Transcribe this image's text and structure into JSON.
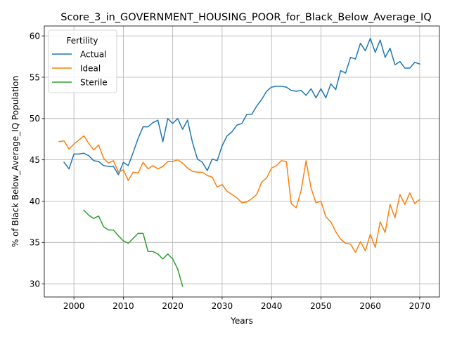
{
  "chart_data": {
    "type": "line",
    "title": "Score_3_in_GOVERNMENT_HOUSING_POOR_for_Black_Below_Average_IQ",
    "xlabel": "Years",
    "ylabel": "% of Black Below_Average_IQ Population",
    "xlim": [
      1994,
      2074
    ],
    "ylim": [
      28.4,
      61.2
    ],
    "xticks": [
      2000,
      2010,
      2020,
      2030,
      2040,
      2050,
      2060,
      2070
    ],
    "yticks": [
      30,
      35,
      40,
      45,
      50,
      55,
      60
    ],
    "grid": true,
    "legend": {
      "title": "Fertility",
      "placement": "top-left"
    },
    "series": [
      {
        "name": "Actual",
        "color": "#1f77b4",
        "x": [
          1998,
          1999,
          2000,
          2001,
          2002,
          2003,
          2004,
          2005,
          2006,
          2007,
          2008,
          2009,
          2010,
          2011,
          2012,
          2013,
          2014,
          2015,
          2016,
          2017,
          2018,
          2019,
          2020,
          2021,
          2022,
          2023,
          2024,
          2025,
          2026,
          2027,
          2028,
          2029,
          2030,
          2031,
          2032,
          2033,
          2034,
          2035,
          2036,
          2037,
          2038,
          2039,
          2040,
          2041,
          2042,
          2043,
          2044,
          2045,
          2046,
          2047,
          2048,
          2049,
          2050,
          2051,
          2052,
          2053,
          2054,
          2055,
          2056,
          2057,
          2058,
          2059,
          2060,
          2061,
          2062,
          2063,
          2064,
          2065,
          2066,
          2067,
          2068,
          2069,
          2070
        ],
        "values": [
          44.7,
          43.9,
          45.7,
          45.7,
          45.8,
          45.5,
          44.9,
          44.8,
          44.3,
          44.2,
          44.2,
          43.2,
          44.7,
          44.3,
          45.9,
          47.6,
          49.0,
          49.0,
          49.5,
          49.8,
          47.2,
          50.0,
          49.4,
          50.0,
          48.7,
          49.8,
          47.1,
          45.1,
          44.7,
          43.7,
          45.1,
          44.9,
          46.7,
          47.9,
          48.4,
          49.2,
          49.4,
          50.5,
          50.5,
          51.5,
          52.3,
          53.3,
          53.8,
          53.9,
          53.9,
          53.8,
          53.4,
          53.3,
          53.4,
          52.8,
          53.6,
          52.5,
          53.6,
          52.5,
          54.2,
          53.5,
          55.8,
          55.5,
          57.4,
          57.2,
          59.1,
          58.2,
          59.7,
          58.0,
          59.5,
          57.4,
          58.5,
          56.5,
          56.9,
          56.1,
          56.1,
          56.8,
          56.6
        ]
      },
      {
        "name": "Ideal",
        "color": "#ff7f0e",
        "x": [
          1997,
          1998,
          1999,
          2000,
          2001,
          2002,
          2003,
          2004,
          2005,
          2006,
          2007,
          2008,
          2009,
          2010,
          2011,
          2012,
          2013,
          2014,
          2015,
          2016,
          2017,
          2018,
          2019,
          2020,
          2021,
          2022,
          2023,
          2024,
          2025,
          2026,
          2027,
          2028,
          2029,
          2030,
          2031,
          2032,
          2033,
          2034,
          2035,
          2036,
          2037,
          2038,
          2039,
          2040,
          2041,
          2042,
          2043,
          2044,
          2045,
          2046,
          2047,
          2048,
          2049,
          2050,
          2051,
          2052,
          2053,
          2054,
          2055,
          2056,
          2057,
          2058,
          2059,
          2060,
          2061,
          2062,
          2063,
          2064,
          2065,
          2066,
          2067,
          2068,
          2069,
          2070
        ],
        "values": [
          47.2,
          47.3,
          46.3,
          46.9,
          47.4,
          47.9,
          47.0,
          46.2,
          46.8,
          45.2,
          44.6,
          44.9,
          43.5,
          43.8,
          42.5,
          43.5,
          43.4,
          44.7,
          43.9,
          44.3,
          43.9,
          44.2,
          44.8,
          44.8,
          45.0,
          44.6,
          44.0,
          43.6,
          43.5,
          43.5,
          43.1,
          42.9,
          41.7,
          42.0,
          41.2,
          40.8,
          40.4,
          39.8,
          39.9,
          40.3,
          40.8,
          42.3,
          42.8,
          44.0,
          44.3,
          44.9,
          44.8,
          39.7,
          39.2,
          41.3,
          44.9,
          41.6,
          39.8,
          40.0,
          38.1,
          37.5,
          36.3,
          35.4,
          34.9,
          34.8,
          33.8,
          35.1,
          34.0,
          36.0,
          34.4,
          37.5,
          36.2,
          39.6,
          38.0,
          40.8,
          39.6,
          41.0,
          39.7,
          40.2
        ]
      },
      {
        "name": "Sterile",
        "color": "#2ca02c",
        "x": [
          2002,
          2003,
          2004,
          2005,
          2006,
          2007,
          2008,
          2009,
          2010,
          2011,
          2012,
          2013,
          2014,
          2015,
          2016,
          2017,
          2018,
          2019,
          2020,
          2021,
          2022
        ],
        "values": [
          38.9,
          38.3,
          37.9,
          38.2,
          36.9,
          36.5,
          36.5,
          35.8,
          35.2,
          34.9,
          35.5,
          36.1,
          36.1,
          33.9,
          33.9,
          33.6,
          33.0,
          33.6,
          33.0,
          31.8,
          29.7
        ]
      }
    ]
  }
}
